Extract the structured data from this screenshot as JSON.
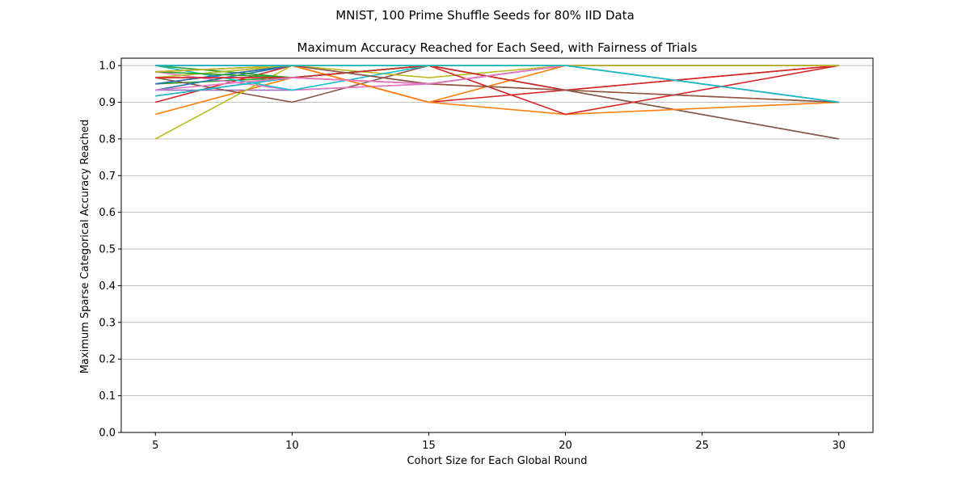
{
  "suptitle": "MNIST, 100 Prime Shuffle Seeds for 80% IID Data",
  "chart_data": {
    "type": "line",
    "title": "Maximum Accuracy Reached for Each Seed, with Fairness of Trials",
    "xlabel": "Cohort Size for Each Global Round",
    "ylabel": "Maximum Sparse Categorical Accuracy Reached",
    "x": [
      5,
      10,
      15,
      20,
      30
    ],
    "xlim": [
      3.75,
      31.25
    ],
    "ylim": [
      0.0,
      1.02
    ],
    "xticks": [
      "5",
      "10",
      "15",
      "20",
      "25",
      "30"
    ],
    "yticks": [
      "0.0",
      "0.1",
      "0.2",
      "0.3",
      "0.4",
      "0.5",
      "0.6",
      "0.7",
      "0.8",
      "0.9",
      "1.0"
    ],
    "grid": "y",
    "series": [
      {
        "color": "#1f77b4",
        "values": [
          1.0,
          1.0,
          1.0,
          1.0,
          1.0
        ]
      },
      {
        "color": "#ff7f0e",
        "values": [
          0.867,
          0.967,
          0.95,
          0.933,
          0.9
        ]
      },
      {
        "color": "#2ca02c",
        "values": [
          0.95,
          0.967,
          1.0,
          0.933,
          0.8
        ]
      },
      {
        "color": "#d62728",
        "values": [
          0.9,
          1.0,
          0.9,
          0.933,
          1.0
        ]
      },
      {
        "color": "#9467bd",
        "values": [
          0.933,
          0.933,
          0.95,
          1.0,
          1.0
        ]
      },
      {
        "color": "#8c564b",
        "values": [
          0.967,
          0.9,
          1.0,
          0.933,
          0.8
        ]
      },
      {
        "color": "#e377c2",
        "values": [
          0.983,
          0.933,
          0.95,
          1.0,
          1.0
        ]
      },
      {
        "color": "#7f7f7f",
        "values": [
          0.967,
          1.0,
          0.95,
          1.0,
          1.0
        ]
      },
      {
        "color": "#bcbd22",
        "values": [
          0.8,
          1.0,
          0.967,
          1.0,
          1.0
        ]
      },
      {
        "color": "#17becf",
        "values": [
          1.0,
          0.933,
          1.0,
          1.0,
          0.9
        ]
      },
      {
        "color": "#1f77b4",
        "values": [
          0.933,
          1.0,
          1.0,
          1.0,
          1.0
        ]
      },
      {
        "color": "#ff7f0e",
        "values": [
          0.983,
          1.0,
          0.9,
          0.867,
          0.9
        ]
      },
      {
        "color": "#2ca02c",
        "values": [
          1.0,
          0.967,
          1.0,
          1.0,
          1.0
        ]
      },
      {
        "color": "#d62728",
        "values": [
          0.95,
          1.0,
          1.0,
          0.867,
          1.0
        ]
      },
      {
        "color": "#9467bd",
        "values": [
          1.0,
          1.0,
          1.0,
          1.0,
          1.0
        ]
      },
      {
        "color": "#8c564b",
        "values": [
          0.917,
          0.967,
          0.95,
          1.0,
          0.9
        ]
      },
      {
        "color": "#e377c2",
        "values": [
          0.967,
          0.967,
          0.95,
          1.0,
          1.0
        ]
      },
      {
        "color": "#7f7f7f",
        "values": [
          1.0,
          1.0,
          1.0,
          1.0,
          1.0
        ]
      },
      {
        "color": "#bcbd22",
        "values": [
          0.967,
          1.0,
          1.0,
          1.0,
          1.0
        ]
      },
      {
        "color": "#17becf",
        "values": [
          0.917,
          0.967,
          1.0,
          1.0,
          1.0
        ]
      },
      {
        "color": "#1f77b4",
        "values": [
          0.95,
          1.0,
          1.0,
          1.0,
          1.0
        ]
      },
      {
        "color": "#ff7f0e",
        "values": [
          1.0,
          1.0,
          0.9,
          1.0,
          1.0
        ]
      },
      {
        "color": "#2ca02c",
        "values": [
          0.983,
          0.967,
          1.0,
          1.0,
          1.0
        ]
      },
      {
        "color": "#d62728",
        "values": [
          0.967,
          0.967,
          1.0,
          0.933,
          1.0
        ]
      },
      {
        "color": "#9467bd",
        "values": [
          1.0,
          1.0,
          1.0,
          1.0,
          1.0
        ]
      },
      {
        "color": "#8c564b",
        "values": [
          0.983,
          1.0,
          0.95,
          0.933,
          0.9
        ]
      },
      {
        "color": "#e377c2",
        "values": [
          0.933,
          0.967,
          0.95,
          1.0,
          1.0
        ]
      },
      {
        "color": "#7f7f7f",
        "values": [
          1.0,
          1.0,
          1.0,
          1.0,
          1.0
        ]
      },
      {
        "color": "#bcbd22",
        "values": [
          0.983,
          1.0,
          1.0,
          1.0,
          1.0
        ]
      },
      {
        "color": "#17becf",
        "values": [
          1.0,
          1.0,
          1.0,
          1.0,
          0.9
        ]
      }
    ]
  }
}
